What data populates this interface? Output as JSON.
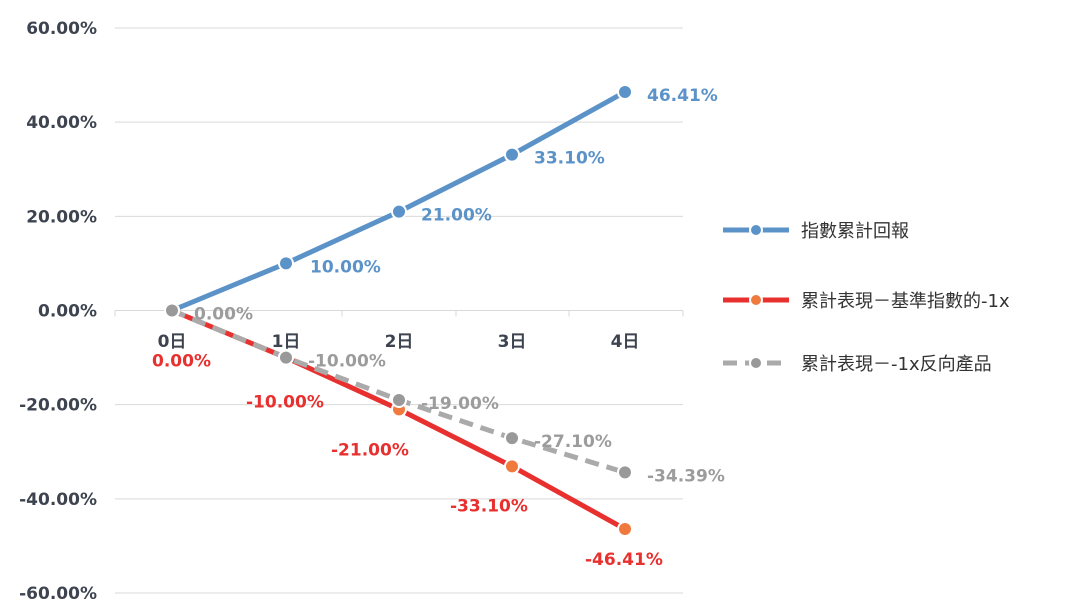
{
  "chart_data": {
    "type": "line",
    "categories": [
      "0日",
      "1日",
      "2日",
      "3日",
      "4日"
    ],
    "ylim": [
      -60,
      60
    ],
    "yticks": [
      60,
      40,
      20,
      0,
      -20,
      -40,
      -60
    ],
    "ytick_labels": [
      "60.00%",
      "40.00%",
      "20.00%",
      "0.00%",
      "-20.00%",
      "-40.00%",
      "-60.00%"
    ],
    "grid": true,
    "legend_position": "right",
    "series": [
      {
        "name": "指數累計回報",
        "values": [
          0,
          10,
          21,
          33.1,
          46.41
        ],
        "labels": [
          "",
          "10.00%",
          "21.00%",
          "33.10%",
          "46.41%"
        ],
        "color": "#5b93c8",
        "dashed": false
      },
      {
        "name": "累計表現－基準指數的-1x",
        "values": [
          0,
          -10,
          -21,
          -33.1,
          -46.41
        ],
        "labels": [
          "0.00%",
          "-10.00%",
          "-21.00%",
          "-33.10%",
          "-46.41%"
        ],
        "color": "#e8302f",
        "marker_color": "#f07a3e",
        "dashed": false
      },
      {
        "name": "累計表現－-1x反向產品",
        "values": [
          0,
          -10,
          -19,
          -27.1,
          -34.39
        ],
        "labels": [
          "0.00%",
          "-10.00%",
          "-19.00%",
          "-27.10%",
          "-34.39%"
        ],
        "color": "#aaaaaa",
        "marker_color": "#999999",
        "dashed": true
      }
    ]
  }
}
